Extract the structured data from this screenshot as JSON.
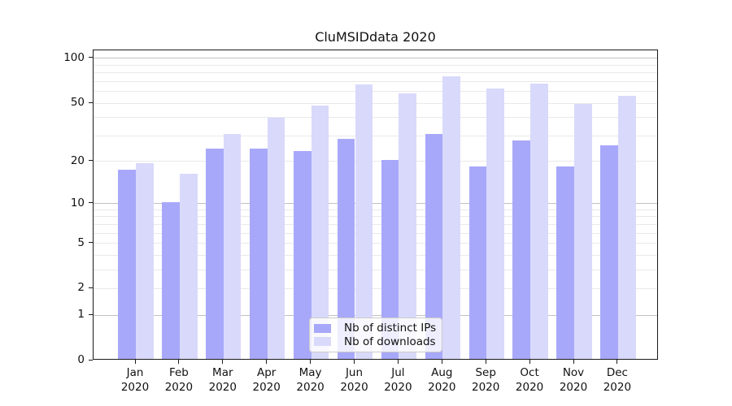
{
  "colors": {
    "ips": "#a8a8fa",
    "downloads": "#d9d9fb",
    "grid_major": "#c0c0c4",
    "grid_minor": "#e9e9ec",
    "axis": "#1a1a1a",
    "legend_border": "#cbcbcb"
  },
  "chart_data": {
    "type": "bar",
    "title": "CluMSIDdata 2020",
    "categories": [
      "Jan",
      "Feb",
      "Mar",
      "Apr",
      "May",
      "Jun",
      "Jul",
      "Aug",
      "Sep",
      "Oct",
      "Nov",
      "Dec"
    ],
    "category_year": "2020",
    "series": [
      {
        "name": "Nb of distinct IPs",
        "color_key": "ips",
        "values": [
          17,
          10,
          24,
          24,
          23,
          28,
          20,
          30,
          18,
          27,
          18,
          25
        ]
      },
      {
        "name": "Nb of downloads",
        "color_key": "downloads",
        "values": [
          19,
          16,
          30,
          39,
          47,
          65,
          57,
          74,
          61,
          66,
          48,
          55
        ]
      }
    ],
    "yscale": "log1p",
    "ylim": [
      0,
      115
    ],
    "yticks": [
      100,
      50,
      20,
      10,
      5,
      2,
      1,
      0
    ],
    "grid_major_values": [
      1,
      10,
      100
    ],
    "grid_minor_values": [
      2,
      3,
      4,
      5,
      6,
      7,
      8,
      9,
      20,
      30,
      40,
      50,
      60,
      70,
      80,
      90
    ],
    "grid": "on",
    "legend_position": "lower center",
    "xlabel": "",
    "ylabel": ""
  },
  "legend": {
    "items": [
      {
        "label": "Nb of distinct IPs",
        "color_key": "ips"
      },
      {
        "label": "Nb of downloads",
        "color_key": "downloads"
      }
    ]
  }
}
